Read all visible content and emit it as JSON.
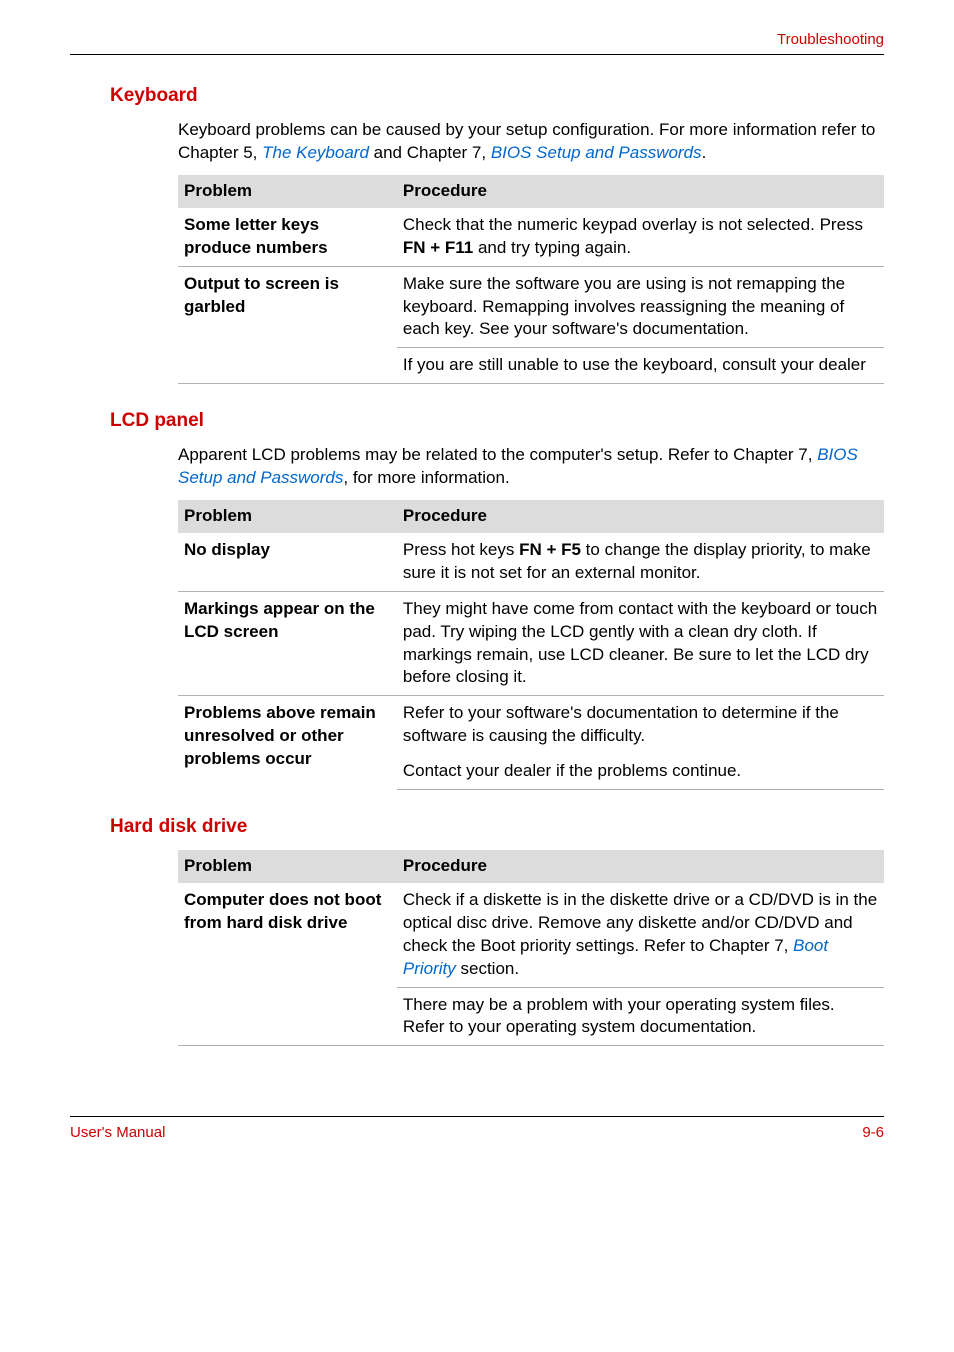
{
  "header": {
    "right": "Troubleshooting"
  },
  "footer": {
    "left": "User's Manual",
    "right": "9-6"
  },
  "colors": {
    "accent": "#cc0000",
    "link": "#0066cc",
    "table_header_bg": "#dcdcdc",
    "row_border": "#b0b0b0",
    "text": "#000000",
    "page_bg": "#ffffff"
  },
  "table_headers": {
    "problem": "Problem",
    "procedure": "Procedure"
  },
  "sections": {
    "keyboard": {
      "title": "Keyboard",
      "intro_pre": "Keyboard problems can be caused by your setup configuration. For more information refer to Chapter 5, ",
      "intro_link1": "The Keyboard",
      "intro_mid": " and Chapter 7, ",
      "intro_link2": "BIOS Setup and Passwords",
      "intro_post": ".",
      "rows": [
        {
          "problem": "Some letter keys produce numbers",
          "procedure_pre": "Check that the numeric keypad overlay is not selected. Press ",
          "procedure_bold": "FN + F11",
          "procedure_post": " and try typing again."
        },
        {
          "problem": "Output to screen is garbled",
          "procedure": "Make sure the software you are using is not remapping the keyboard. Remapping involves reassigning the meaning of each key. See your software's documentation."
        },
        {
          "problem": "",
          "procedure": "If you are still unable to use the keyboard, consult your dealer"
        }
      ]
    },
    "lcd": {
      "title": "LCD panel",
      "intro_pre": "Apparent LCD problems may be related to the computer's setup. Refer to Chapter 7, ",
      "intro_link1": "BIOS Setup and Passwords",
      "intro_post": ", for more information.",
      "rows": [
        {
          "problem": "No display",
          "procedure_pre": "Press hot keys ",
          "procedure_bold": "FN + F5",
          "procedure_post": " to change the display priority, to make sure it is not set for an external monitor."
        },
        {
          "problem": "Markings appear on the LCD screen",
          "procedure": "They might have come from contact with the keyboard or touch pad. Try wiping the LCD gently with a clean dry cloth. If markings remain, use LCD cleaner. Be sure to let the LCD dry before closing it."
        },
        {
          "problem": "Problems above remain unresolved or other problems occur",
          "procedure1": "Refer to your software's documentation to determine if the software is causing the difficulty.",
          "procedure2": "Contact your dealer if the problems continue."
        }
      ]
    },
    "hdd": {
      "title": "Hard disk drive",
      "rows": [
        {
          "problem": "Computer does not boot from hard disk drive",
          "procedure_pre": "Check if a diskette is in the diskette drive or a CD/DVD is in the optical disc drive. Remove any diskette and/or CD/DVD and check the Boot priority settings. Refer to Chapter 7, ",
          "procedure_link": "Boot Priority",
          "procedure_post": " section."
        },
        {
          "problem": "",
          "procedure": "There may be a problem with your operating system files. Refer to your operating system documentation."
        }
      ]
    }
  }
}
